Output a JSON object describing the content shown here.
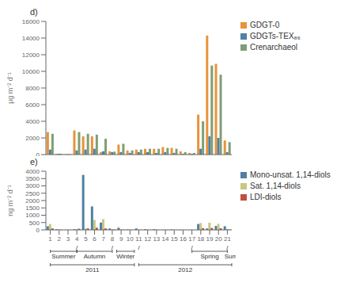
{
  "chart_data": [
    {
      "type": "bar",
      "title": "d)",
      "y_label": "μg m⁻² d⁻¹",
      "categories": [
        1,
        2,
        3,
        4,
        5,
        6,
        7,
        8,
        9,
        10,
        11,
        12,
        13,
        14,
        15,
        16,
        17,
        18,
        19,
        20,
        21
      ],
      "series": [
        {
          "name": "GDGT-0",
          "color": "#E8933A",
          "values": [
            2700,
            100,
            50,
            2900,
            2200,
            2200,
            300,
            400,
            1200,
            500,
            600,
            700,
            700,
            900,
            800,
            400,
            200,
            4800,
            14300,
            10900,
            1700
          ]
        },
        {
          "name": "GDGTs-TEX₈₆",
          "color": "#4F81A3",
          "values": [
            600,
            100,
            50,
            500,
            600,
            700,
            400,
            300,
            300,
            200,
            300,
            300,
            200,
            300,
            200,
            100,
            100,
            700,
            2200,
            2000,
            300
          ]
        },
        {
          "name": "Crenarchaeol",
          "color": "#7F9E75",
          "values": [
            2500,
            100,
            50,
            2700,
            2500,
            2400,
            1900,
            350,
            1300,
            500,
            600,
            700,
            700,
            800,
            700,
            300,
            200,
            4000,
            10700,
            9600,
            1500
          ]
        }
      ],
      "ylim": [
        0,
        16000
      ],
      "yticks": [
        0,
        2000,
        4000,
        6000,
        8000,
        10000,
        12000,
        14000,
        16000
      ],
      "tick_labels": "y",
      "grid": false,
      "legend": "right"
    },
    {
      "type": "bar",
      "title": "e)",
      "y_label": "ng m⁻² d⁻¹",
      "categories": [
        1,
        2,
        3,
        4,
        5,
        6,
        7,
        8,
        9,
        10,
        11,
        12,
        13,
        14,
        15,
        16,
        17,
        18,
        19,
        20,
        21
      ],
      "series": [
        {
          "name": "Mono-unsat. 1,14-diols",
          "color": "#4F81A3",
          "values": [
            250,
            50,
            10,
            50,
            3750,
            1600,
            500,
            100,
            150,
            30,
            100,
            50,
            50,
            20,
            30,
            20,
            10,
            400,
            100,
            270,
            250
          ]
        },
        {
          "name": "Sat. 1,14-diols",
          "color": "#C8C880",
          "values": [
            400,
            30,
            10,
            50,
            100,
            680,
            730,
            40,
            30,
            20,
            20,
            15,
            15,
            10,
            10,
            5,
            5,
            470,
            490,
            410,
            50
          ]
        },
        {
          "name": "LDI-diols",
          "color": "#C05040",
          "values": [
            100,
            20,
            5,
            80,
            100,
            150,
            100,
            30,
            20,
            10,
            10,
            10,
            10,
            10,
            5,
            5,
            5,
            120,
            130,
            110,
            30
          ]
        }
      ],
      "ylim": [
        0,
        4000
      ],
      "yticks": [
        0,
        500,
        1000,
        1500,
        2000,
        2500,
        3000,
        3500,
        4000
      ],
      "tick_labels": true,
      "grid": false,
      "legend": "right",
      "annotations": [
        [
          {
            "text": "/",
            "x": 4
          },
          {
            "text": "/",
            "x": 8
          },
          {
            "text": "/",
            "x": 11
          },
          {
            "text": "/",
            "x": 17
          },
          {
            "text": "/",
            "x": 21
          }
        ],
        [
          {
            "text": "Summer",
            "x": [
              1,
              4
            ]
          },
          {
            "text": "Autumn",
            "x": [
              4,
              8
            ]
          },
          {
            "text": "Winter",
            "x": [
              8.5,
              10.5
            ]
          },
          {
            "text": "Spring",
            "x": [
              17,
              21
            ]
          },
          {
            "text": "Sum.",
            "x": 21.5
          }
        ],
        [
          {
            "text": "2011",
            "x": [
              1,
              10.5
            ]
          },
          {
            "text": "2012",
            "x": [
              11,
              21.5
            ]
          }
        ]
      ]
    }
  ]
}
